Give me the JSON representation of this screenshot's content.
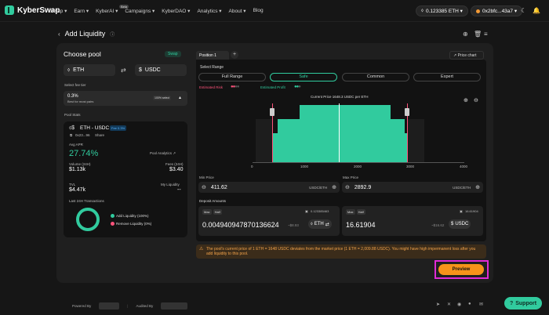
{
  "header": {
    "logo": "KyberSwap",
    "nav": [
      "Swap ▾",
      "Earn ▾",
      "KyberAI ▾",
      "Campaigns ▾",
      "KyberDAO ▾",
      "Analytics ▾",
      "About ▾",
      "Blog"
    ],
    "beta_badge": "Beta",
    "balance": "0.123385 ETH ▾",
    "address": "0x2bfc...43a7 ▾"
  },
  "page": {
    "back_icon": "chevron-left-icon",
    "title": "Add Liquidity"
  },
  "pool": {
    "choose_label": "Choose pool",
    "swap_badge": "Swap",
    "token_a": "ETH",
    "token_b": "USDC",
    "fee_label": "Select fee tier",
    "fee_value": "0.3%",
    "fee_sub": "Best for most pairs",
    "fee_select": "100% select",
    "stats_label": "Pool Stats",
    "pair": "ETH - USDC",
    "pair_fee": "Fee 0.3%",
    "address_short": "0x23...96",
    "share": "Share",
    "apr_label": "Avg APR",
    "apr": "27.74%",
    "analytics": "Pool Analytics ↗",
    "volume_label": "Volume (24H)",
    "volume": "$1.13k",
    "fees_label": "Fees (24H)",
    "fees": "$3.40",
    "tvl_label": "TVL",
    "tvl": "$4.47k",
    "my_liquidity_label": "My Liquidity",
    "my_liquidity": "--",
    "tx_label": "Last 24H Transactions",
    "add_liq": "Add Liquidity (100%)",
    "remove_liq": "Remove Liquidity (0%)"
  },
  "position": {
    "tab": "Position 1",
    "price_chart": "Price chart",
    "select_range": "Select Range",
    "ranges": [
      "Full Range",
      "Safe",
      "Common",
      "Expert"
    ],
    "est_risk": "Estimated Risk",
    "est_profit": "Estimated Profit",
    "current_price": "Current Price 1648.3 USDC per ETH",
    "axis": [
      "0",
      "1000",
      "2000",
      "3000",
      "4000"
    ],
    "min_label": "Min Price",
    "min_value": "411.62",
    "max_label": "Max Price",
    "max_value": "2892.9",
    "unit": "USDC/ETH",
    "deposit_label": "Deposit Amounts",
    "chip_max": "Max",
    "chip_half": "Half",
    "bal_a": "0.123385463",
    "bal_b": "16.61904",
    "amount_a": "0.004940947870136624",
    "usd_a": "~$8.93",
    "amount_b": "16.61904",
    "usd_b": "~$16.62",
    "sym_a": "ETH",
    "sym_b": "USDC"
  },
  "warning": "The pool's current price of 1 ETH = 1648 USDC deviates from the market price (1 ETH = 2,009.88 USDC). You might have high impermanent loss after you add liquidity to this pool.",
  "preview": "Preview",
  "footer": {
    "powered": "Powered By",
    "audited": "Audited By",
    "support": "Support"
  }
}
